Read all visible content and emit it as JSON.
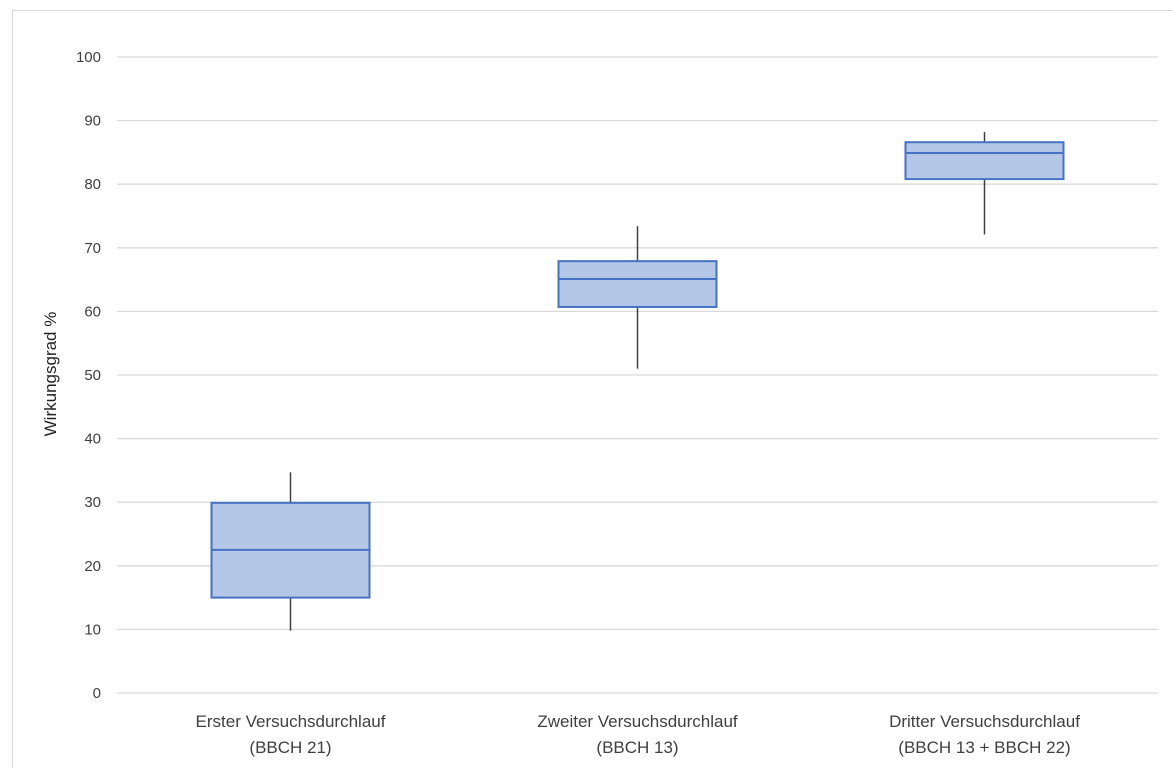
{
  "chart_data": {
    "type": "boxplot",
    "ylabel": "Wirkungsgrad %",
    "ylim": [
      0,
      100
    ],
    "yticks": [
      "0",
      "10",
      "20",
      "30",
      "40",
      "50",
      "60",
      "70",
      "80",
      "90",
      "100"
    ],
    "grid": true,
    "categories": [
      {
        "line1": "Erster Versuchsdurchlauf",
        "line2": "(BBCH 21)"
      },
      {
        "line1": "Zweiter Versuchsdurchlauf",
        "line2": "(BBCH 13)"
      },
      {
        "line1": "Dritter Versuchsdurchlauf",
        "line2": "(BBCH 13 + BBCH 22)"
      }
    ],
    "boxes": [
      {
        "min": 9.8,
        "q1": 15.0,
        "median": 22.5,
        "q3": 29.9,
        "max": 34.7
      },
      {
        "min": 51.0,
        "q1": 60.7,
        "median": 65.1,
        "q3": 67.9,
        "max": 73.4
      },
      {
        "min": 72.1,
        "q1": 80.8,
        "median": 84.9,
        "q3": 86.6,
        "max": 88.2
      }
    ],
    "colors": {
      "box_fill": "#b4c7e7",
      "box_stroke": "#4472c4",
      "whisker": "#404040",
      "grid": "#d9d9d9"
    }
  }
}
